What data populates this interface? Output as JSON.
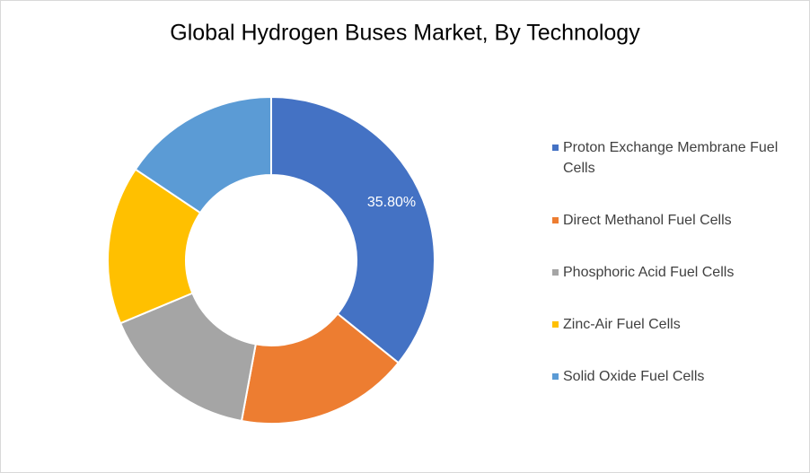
{
  "chart_data": {
    "type": "donut",
    "title": "Global Hydrogen Buses Market, By Technology",
    "categories": [
      "Proton Exchange Membrane Fuel Cells",
      "Direct Methanol Fuel Cells",
      "Phosphoric Acid Fuel Cells",
      "Zinc-Air Fuel Cells",
      "Solid Oxide Fuel Cells"
    ],
    "values": [
      35.8,
      17.1,
      15.8,
      15.7,
      15.6
    ],
    "value_labels": [
      "35.80%",
      null,
      null,
      null,
      null
    ],
    "colors": [
      "#4472c4",
      "#ed7d31",
      "#a5a5a5",
      "#ffc000",
      "#5b9bd5"
    ],
    "legend": "right"
  }
}
